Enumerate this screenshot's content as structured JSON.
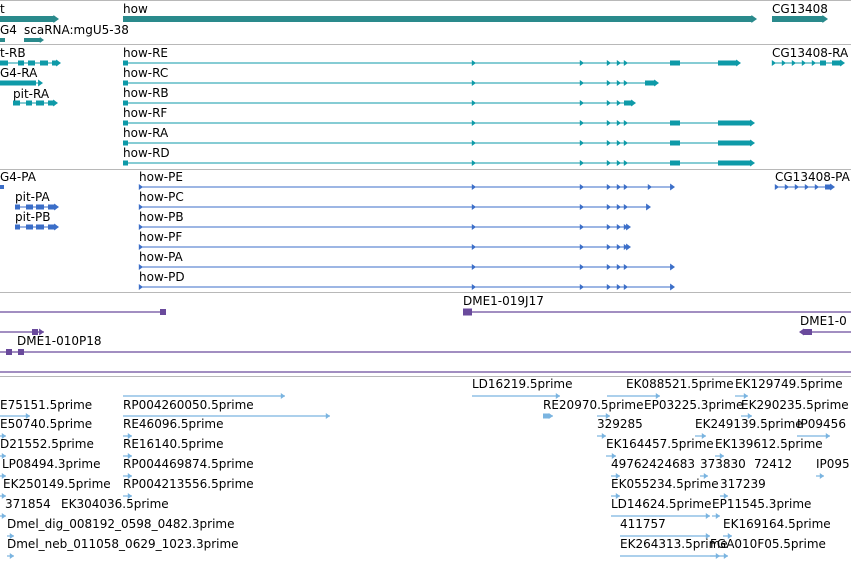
{
  "colors": {
    "gene": "#2a8a8c",
    "transcript": "#0e9aa8",
    "protein": "#3b6ec8",
    "clone": "#6a4a9c",
    "est": "#7ab4e0",
    "separator": "#b8b8b8"
  },
  "tracks": {
    "genes": {
      "labels": [
        {
          "id": "gene-t",
          "text": "t"
        },
        {
          "id": "gene-how",
          "text": "how"
        },
        {
          "id": "gene-cg13408",
          "text": "CG13408"
        },
        {
          "id": "gene-g4",
          "text": "G4"
        },
        {
          "id": "gene-scarna",
          "text": "scaRNA:mgU5-38"
        }
      ]
    },
    "transcripts": {
      "labels": [
        {
          "id": "tx-t-rb",
          "text": "t-RB"
        },
        {
          "id": "tx-how-re",
          "text": "how-RE"
        },
        {
          "id": "tx-cg13408-ra",
          "text": "CG13408-RA"
        },
        {
          "id": "tx-g4-ra",
          "text": "G4-RA"
        },
        {
          "id": "tx-how-rc",
          "text": "how-RC"
        },
        {
          "id": "tx-pit-ra",
          "text": "pit-RA"
        },
        {
          "id": "tx-how-rb",
          "text": "how-RB"
        },
        {
          "id": "tx-how-rf",
          "text": "how-RF"
        },
        {
          "id": "tx-how-ra",
          "text": "how-RA"
        },
        {
          "id": "tx-how-rd",
          "text": "how-RD"
        }
      ]
    },
    "proteins": {
      "labels": [
        {
          "id": "pr-g4-pa",
          "text": "G4-PA"
        },
        {
          "id": "pr-how-pe",
          "text": "how-PE"
        },
        {
          "id": "pr-cg13408-pa",
          "text": "CG13408-PA"
        },
        {
          "id": "pr-pit-pa",
          "text": "pit-PA"
        },
        {
          "id": "pr-how-pc",
          "text": "how-PC"
        },
        {
          "id": "pr-pit-pb",
          "text": "pit-PB"
        },
        {
          "id": "pr-how-pb",
          "text": "how-PB"
        },
        {
          "id": "pr-how-pf",
          "text": "how-PF"
        },
        {
          "id": "pr-how-pa",
          "text": "how-PA"
        },
        {
          "id": "pr-how-pd",
          "text": "how-PD"
        }
      ]
    },
    "clones": {
      "labels": [
        {
          "id": "cl-019j17",
          "text": "DME1-019J17"
        },
        {
          "id": "cl-0",
          "text": "DME1-0"
        },
        {
          "id": "cl-010p18",
          "text": "DME1-010P18"
        }
      ]
    },
    "ests": {
      "labels": [
        {
          "id": "est-ld16219",
          "text": "LD16219.5prime"
        },
        {
          "id": "est-ek088521",
          "text": "EK088521.5prime"
        },
        {
          "id": "est-ek129749",
          "text": "EK129749.5prime"
        },
        {
          "id": "est-e75151",
          "text": "E75151.5prime"
        },
        {
          "id": "est-rp004260050",
          "text": "RP004260050.5prime"
        },
        {
          "id": "est-re20970",
          "text": "RE20970.5prime"
        },
        {
          "id": "est-ep03225",
          "text": "EP03225.3prime"
        },
        {
          "id": "est-ek290235",
          "text": "EK290235.5prime"
        },
        {
          "id": "est-e50740",
          "text": "E50740.5prime"
        },
        {
          "id": "est-re46096",
          "text": "RE46096.5prime"
        },
        {
          "id": "est-329285",
          "text": "329285"
        },
        {
          "id": "est-ek249139",
          "text": "EK249139.5prime"
        },
        {
          "id": "est-ip09456",
          "text": "IP09456"
        },
        {
          "id": "est-d21552",
          "text": "D21552.5prime"
        },
        {
          "id": "est-re16140",
          "text": "RE16140.5prime"
        },
        {
          "id": "est-ek164457",
          "text": "EK164457.5prime"
        },
        {
          "id": "est-ek139612",
          "text": "EK139612.5prime"
        },
        {
          "id": "est-lp08494",
          "text": "LP08494.3prime"
        },
        {
          "id": "est-rp004469874",
          "text": "RP004469874.5prime"
        },
        {
          "id": "est-49762424683",
          "text": "49762424683"
        },
        {
          "id": "est-373830",
          "text": "373830"
        },
        {
          "id": "est-72412",
          "text": "72412"
        },
        {
          "id": "est-ip095",
          "text": "IP095"
        },
        {
          "id": "est-ek250149",
          "text": "EK250149.5prime"
        },
        {
          "id": "est-rp004213556",
          "text": "RP004213556.5prime"
        },
        {
          "id": "est-ek055234",
          "text": "EK055234.5prime"
        },
        {
          "id": "est-317239",
          "text": "317239"
        },
        {
          "id": "est-371854",
          "text": "371854"
        },
        {
          "id": "est-ek304036",
          "text": "EK304036.5prime"
        },
        {
          "id": "est-ld14624",
          "text": "LD14624.5prime"
        },
        {
          "id": "est-ep11545",
          "text": "EP11545.3prime"
        },
        {
          "id": "est-dmel-dig",
          "text": "Dmel_dig_008192_0598_0482.3prime"
        },
        {
          "id": "est-411757",
          "text": "411757"
        },
        {
          "id": "est-ek169164",
          "text": "EK169164.5prime"
        },
        {
          "id": "est-dmel-neb",
          "text": "Dmel_neb_011058_0629_1023.3prime"
        },
        {
          "id": "est-ek264313",
          "text": "EK264313.5prime"
        },
        {
          "id": "est-fga010f05",
          "text": "FGA010F05.5prime"
        }
      ]
    }
  }
}
